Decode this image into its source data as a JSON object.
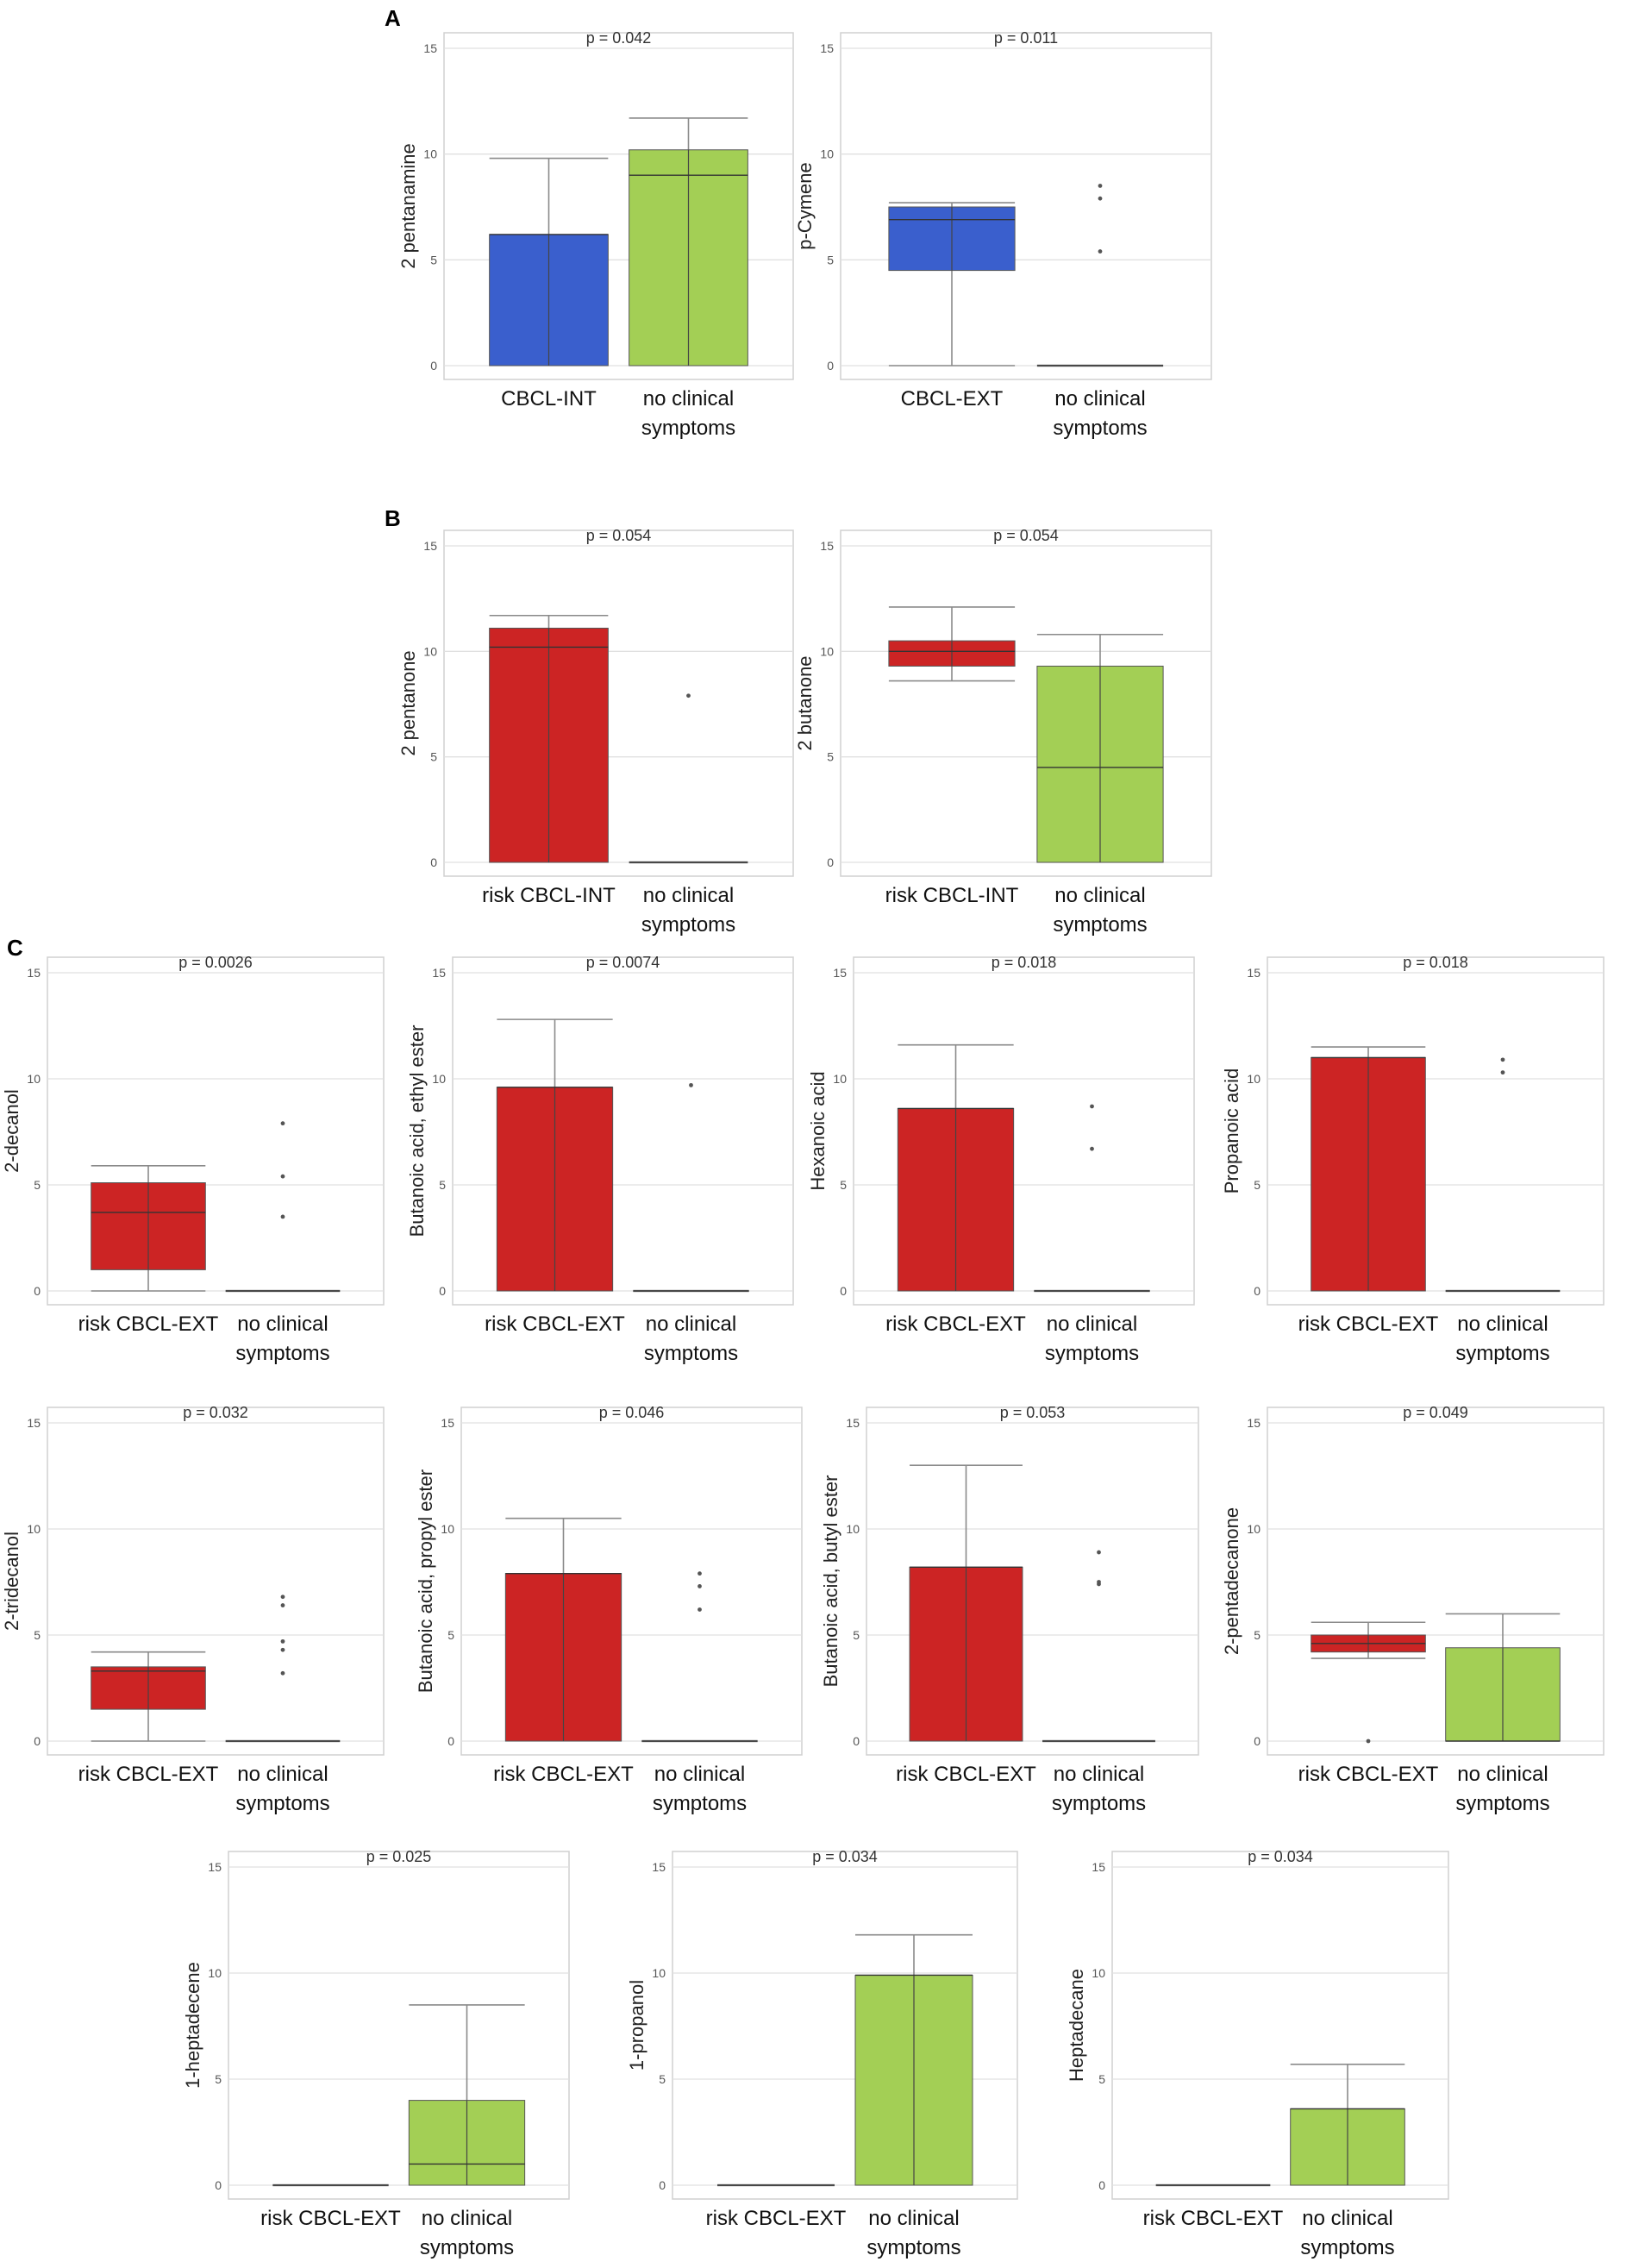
{
  "colors": {
    "int": "#3a5fcd",
    "risk": "#cc2424",
    "control": "#a3cf55",
    "frame": "#d0d0d0",
    "grid": "#e0e0e0",
    "whisker": "#8a8a8a",
    "median": "#333333",
    "outlier": "#555555"
  },
  "section_labels": {
    "a": "A",
    "b": "B",
    "c": "C"
  },
  "chart_data": [
    {
      "id": "A1",
      "section": "A",
      "type": "box",
      "title": "p = 0.042",
      "ylabel": "2 pentanamine",
      "ylim": [
        0,
        15
      ],
      "yticks": [
        0,
        5,
        10,
        15
      ],
      "categories": [
        "CBCL-INT",
        "no clinical symptoms"
      ],
      "boxes": [
        {
          "q1": 0,
          "median": 6.2,
          "q3": 6.2,
          "whisker_high": 9.8,
          "color": "int",
          "outliers": []
        },
        {
          "q1": 0,
          "median": 9,
          "q3": 10.2,
          "whisker_high": 11.7,
          "color": "control",
          "outliers": []
        }
      ]
    },
    {
      "id": "A2",
      "section": "A",
      "type": "box",
      "title": "p = 0.011",
      "ylabel": "p-Cymene",
      "ylim": [
        0,
        15
      ],
      "yticks": [
        0,
        5,
        10,
        15
      ],
      "categories": [
        "CBCL-EXT",
        "no clinical symptoms"
      ],
      "boxes": [
        {
          "q1": 4.5,
          "median": 6.9,
          "q3": 7.5,
          "whisker_low": 0,
          "whisker_high": 7.7,
          "color": "int",
          "outliers": []
        },
        {
          "q1": 0,
          "median": 0,
          "q3": 0,
          "color": "control",
          "outliers": [
            5.4,
            7.9,
            8.5
          ]
        }
      ]
    },
    {
      "id": "B1",
      "section": "B",
      "type": "box",
      "title": "p = 0.054",
      "ylabel": "2 pentanone",
      "ylim": [
        0,
        15
      ],
      "yticks": [
        0,
        5,
        10,
        15
      ],
      "categories": [
        "risk CBCL-INT",
        "no clinical symptoms"
      ],
      "boxes": [
        {
          "q1": 0,
          "median": 10.2,
          "q3": 11.1,
          "whisker_high": 11.7,
          "color": "risk",
          "outliers": []
        },
        {
          "q1": 0,
          "median": 0,
          "q3": 0,
          "color": "control",
          "outliers": [
            7.9
          ]
        }
      ]
    },
    {
      "id": "B2",
      "section": "B",
      "type": "box",
      "title": "p = 0.054",
      "ylabel": "2 butanone",
      "ylim": [
        0,
        15
      ],
      "yticks": [
        0,
        5,
        10,
        15
      ],
      "categories": [
        "risk CBCL-INT",
        "no clinical symptoms"
      ],
      "boxes": [
        {
          "q1": 9.3,
          "median": 10,
          "q3": 10.5,
          "whisker_low": 8.6,
          "whisker_high": 12.1,
          "color": "risk",
          "outliers": []
        },
        {
          "q1": 0,
          "median": 4.5,
          "q3": 9.3,
          "whisker_high": 10.8,
          "color": "control",
          "outliers": []
        }
      ]
    },
    {
      "id": "C1",
      "section": "C",
      "type": "box",
      "title": "p = 0.0026",
      "ylabel": "2-decanol",
      "ylim": [
        0,
        15
      ],
      "yticks": [
        0,
        5,
        10,
        15
      ],
      "categories": [
        "risk CBCL-EXT",
        "no clinical symptoms"
      ],
      "boxes": [
        {
          "q1": 1,
          "median": 3.7,
          "q3": 5.1,
          "whisker_low": 0,
          "whisker_high": 5.9,
          "color": "risk",
          "outliers": []
        },
        {
          "q1": 0,
          "median": 0,
          "q3": 0,
          "color": "control",
          "outliers": [
            3.5,
            5.4,
            7.9
          ]
        }
      ]
    },
    {
      "id": "C2",
      "section": "C",
      "type": "box",
      "title": "p = 0.0074",
      "ylabel": "Butanoic acid, ethyl ester",
      "ylim": [
        0,
        15
      ],
      "yticks": [
        0,
        5,
        10,
        15
      ],
      "categories": [
        "risk CBCL-EXT",
        "no clinical symptoms"
      ],
      "boxes": [
        {
          "q1": 0,
          "median": 9.6,
          "q3": 9.6,
          "whisker_high": 12.8,
          "color": "risk",
          "outliers": []
        },
        {
          "q1": 0,
          "median": 0,
          "q3": 0,
          "color": "control",
          "outliers": [
            9.7
          ]
        }
      ]
    },
    {
      "id": "C3",
      "section": "C",
      "type": "box",
      "title": "p = 0.018",
      "ylabel": "Hexanoic acid",
      "ylim": [
        0,
        15
      ],
      "yticks": [
        0,
        5,
        10,
        15
      ],
      "categories": [
        "risk CBCL-EXT",
        "no clinical symptoms"
      ],
      "boxes": [
        {
          "q1": 0,
          "median": 8.6,
          "q3": 8.6,
          "whisker_high": 11.6,
          "color": "risk",
          "outliers": []
        },
        {
          "q1": 0,
          "median": 0,
          "q3": 0,
          "color": "control",
          "outliers": [
            6.7,
            8.7
          ]
        }
      ]
    },
    {
      "id": "C4",
      "section": "C",
      "type": "box",
      "title": "p = 0.018",
      "ylabel": "Propanoic acid",
      "ylim": [
        0,
        15
      ],
      "yticks": [
        0,
        5,
        10,
        15
      ],
      "categories": [
        "risk CBCL-EXT",
        "no clinical symptoms"
      ],
      "boxes": [
        {
          "q1": 0,
          "median": 11,
          "q3": 11,
          "whisker_high": 11.5,
          "color": "risk",
          "outliers": []
        },
        {
          "q1": 0,
          "median": 0,
          "q3": 0,
          "color": "control",
          "outliers": [
            10.3,
            10.9
          ]
        }
      ]
    },
    {
      "id": "C5",
      "section": "C",
      "type": "box",
      "title": "p = 0.032",
      "ylabel": "2-tridecanol",
      "ylim": [
        0,
        15
      ],
      "yticks": [
        0,
        5,
        10,
        15
      ],
      "categories": [
        "risk CBCL-EXT",
        "no clinical symptoms"
      ],
      "boxes": [
        {
          "q1": 1.5,
          "median": 3.3,
          "q3": 3.5,
          "whisker_low": 0,
          "whisker_high": 4.2,
          "color": "risk",
          "outliers": []
        },
        {
          "q1": 0,
          "median": 0,
          "q3": 0,
          "color": "control",
          "outliers": [
            3.2,
            4.3,
            4.7,
            6.4,
            6.8
          ]
        }
      ]
    },
    {
      "id": "C6",
      "section": "C",
      "type": "box",
      "title": "p = 0.046",
      "ylabel": "Butanoic acid, propyl ester",
      "ylim": [
        0,
        15
      ],
      "yticks": [
        0,
        5,
        10,
        15
      ],
      "categories": [
        "risk CBCL-EXT",
        "no clinical symptoms"
      ],
      "boxes": [
        {
          "q1": 0,
          "median": 7.9,
          "q3": 7.9,
          "whisker_high": 10.5,
          "color": "risk",
          "outliers": []
        },
        {
          "q1": 0,
          "median": 0,
          "q3": 0,
          "color": "control",
          "outliers": [
            6.2,
            7.3,
            7.9
          ]
        }
      ]
    },
    {
      "id": "C7",
      "section": "C",
      "type": "box",
      "title": "p = 0.053",
      "ylabel": "Butanoic acid, butyl ester",
      "ylim": [
        0,
        15
      ],
      "yticks": [
        0,
        5,
        10,
        15
      ],
      "categories": [
        "risk CBCL-EXT",
        "no clinical symptoms"
      ],
      "boxes": [
        {
          "q1": 0,
          "median": 8.2,
          "q3": 8.2,
          "whisker_high": 13,
          "color": "risk",
          "outliers": []
        },
        {
          "q1": 0,
          "median": 0,
          "q3": 0,
          "color": "control",
          "outliers": [
            7.4,
            7.5,
            8.9
          ]
        }
      ]
    },
    {
      "id": "C8",
      "section": "C",
      "type": "box",
      "title": "p = 0.049",
      "ylabel": "2-pentadecanone",
      "ylim": [
        0,
        15
      ],
      "yticks": [
        0,
        5,
        10,
        15
      ],
      "categories": [
        "risk CBCL-EXT",
        "no clinical symptoms"
      ],
      "boxes": [
        {
          "q1": 4.2,
          "median": 4.6,
          "q3": 5,
          "whisker_low": 3.9,
          "whisker_high": 5.6,
          "color": "risk",
          "outliers": [
            0
          ]
        },
        {
          "q1": 0,
          "median": 0,
          "q3": 4.4,
          "whisker_high": 6,
          "color": "control",
          "outliers": []
        }
      ]
    },
    {
      "id": "C9",
      "section": "C",
      "type": "box",
      "title": "p = 0.025",
      "ylabel": "1-heptadecene",
      "ylim": [
        0,
        15
      ],
      "yticks": [
        0,
        5,
        10,
        15
      ],
      "categories": [
        "risk CBCL-EXT",
        "no clinical symptoms"
      ],
      "boxes": [
        {
          "q1": 0,
          "median": 0,
          "q3": 0,
          "color": "risk",
          "outliers": []
        },
        {
          "q1": 0,
          "median": 1,
          "q3": 4,
          "whisker_high": 8.5,
          "color": "control",
          "outliers": []
        }
      ]
    },
    {
      "id": "C10",
      "section": "C",
      "type": "box",
      "title": "p = 0.034",
      "ylabel": "1-propanol",
      "ylim": [
        0,
        15
      ],
      "yticks": [
        0,
        5,
        10,
        15
      ],
      "categories": [
        "risk CBCL-EXT",
        "no clinical symptoms"
      ],
      "boxes": [
        {
          "q1": 0,
          "median": 0,
          "q3": 0,
          "color": "risk",
          "outliers": []
        },
        {
          "q1": 0,
          "median": 9.9,
          "q3": 9.9,
          "whisker_high": 11.8,
          "color": "control",
          "outliers": []
        }
      ]
    },
    {
      "id": "C11",
      "section": "C",
      "type": "box",
      "title": "p = 0.034",
      "ylabel": "Heptadecane",
      "ylim": [
        0,
        15
      ],
      "yticks": [
        0,
        5,
        10,
        15
      ],
      "categories": [
        "risk CBCL-EXT",
        "no clinical symptoms"
      ],
      "boxes": [
        {
          "q1": 0,
          "median": 0,
          "q3": 0,
          "color": "risk",
          "outliers": []
        },
        {
          "q1": 0,
          "median": 3.6,
          "q3": 3.6,
          "whisker_high": 5.7,
          "color": "control",
          "outliers": []
        }
      ]
    }
  ]
}
